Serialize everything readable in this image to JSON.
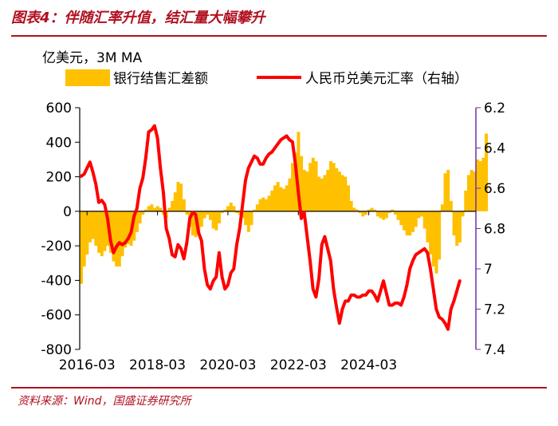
{
  "header": {
    "title": "图表4：伴随汇率升值，结汇量大幅攀升"
  },
  "footer": {
    "source": "资料来源：Wind，国盛证券研究所"
  },
  "colors": {
    "accent": "#b01020",
    "bar": "#ffc000",
    "line": "#ff0000",
    "right_axis": "#7030a0"
  },
  "chart_data": {
    "type": "bar+line",
    "unit_label": "亿美元，3M MA",
    "x_ticks": [
      "2016-03",
      "2018-03",
      "2020-03",
      "2022-03",
      "2024-03"
    ],
    "left_axis": {
      "ylim": [
        -800,
        600
      ],
      "ticks": [
        "600",
        "400",
        "200",
        "0",
        "-200",
        "-400",
        "-600",
        "-800"
      ]
    },
    "right_axis": {
      "ylim": [
        6.2,
        7.4
      ],
      "inverted": true,
      "ticks": [
        "6.2",
        "6.4",
        "6.6",
        "6.8",
        "7",
        "7.2",
        "7.4"
      ]
    },
    "legend": [
      {
        "name": "银行结售汇差额",
        "kind": "bar"
      },
      {
        "name": "人民币兑美元汇率（右轴）",
        "kind": "line"
      }
    ],
    "series": [
      {
        "name": "银行结售汇差额",
        "kind": "bar",
        "axis": "left",
        "start": "2016-01",
        "values": [
          -420,
          -320,
          -250,
          -180,
          -160,
          -200,
          -240,
          -260,
          -230,
          -200,
          -240,
          -290,
          -320,
          -320,
          -260,
          -210,
          -190,
          -200,
          -170,
          -120,
          -70,
          -20,
          10,
          30,
          40,
          20,
          30,
          20,
          -20,
          -40,
          20,
          60,
          110,
          170,
          160,
          70,
          -20,
          -90,
          -140,
          -150,
          -130,
          -90,
          -40,
          -20,
          -50,
          -100,
          -110,
          -70,
          -10,
          10,
          30,
          50,
          30,
          -10,
          -20,
          -40,
          -80,
          -120,
          -80,
          10,
          40,
          70,
          80,
          70,
          90,
          120,
          150,
          170,
          140,
          130,
          150,
          190,
          280,
          340,
          460,
          320,
          240,
          230,
          280,
          310,
          290,
          200,
          190,
          210,
          240,
          290,
          280,
          250,
          230,
          210,
          200,
          150,
          60,
          20,
          10,
          -10,
          -30,
          -20,
          10,
          20,
          10,
          -30,
          -40,
          -50,
          -40,
          -10,
          10,
          -20,
          -50,
          -80,
          -110,
          -140,
          -140,
          -120,
          -90,
          -40,
          -30,
          -100,
          -180,
          -250,
          -320,
          -360,
          -280,
          40,
          220,
          240,
          60,
          -140,
          -200,
          -180,
          -30,
          120,
          210,
          240,
          230,
          300,
          290,
          310,
          450
        ]
      },
      {
        "name": "人民币兑美元汇率（右轴）",
        "kind": "line",
        "axis": "right",
        "start": "2016-01",
        "values": [
          6.54,
          6.53,
          6.5,
          6.47,
          6.52,
          6.58,
          6.67,
          6.66,
          6.68,
          6.75,
          6.86,
          6.92,
          6.89,
          6.87,
          6.88,
          6.87,
          6.85,
          6.82,
          6.74,
          6.7,
          6.6,
          6.55,
          6.45,
          6.32,
          6.31,
          6.29,
          6.35,
          6.5,
          6.62,
          6.8,
          6.85,
          6.93,
          6.94,
          6.88,
          6.9,
          6.95,
          6.87,
          6.75,
          6.72,
          6.73,
          6.82,
          6.86,
          7.0,
          7.08,
          7.1,
          7.06,
          7.04,
          6.92,
          7.04,
          7.1,
          7.08,
          7.02,
          7.0,
          6.88,
          6.8,
          6.68,
          6.56,
          6.5,
          6.47,
          6.44,
          6.45,
          6.48,
          6.48,
          6.45,
          6.43,
          6.42,
          6.4,
          6.38,
          6.36,
          6.35,
          6.34,
          6.36,
          6.37,
          6.48,
          6.62,
          6.75,
          6.72,
          6.84,
          6.96,
          7.1,
          7.14,
          7.05,
          6.88,
          6.84,
          6.9,
          6.96,
          7.1,
          7.19,
          7.27,
          7.2,
          7.16,
          7.16,
          7.13,
          7.13,
          7.14,
          7.14,
          7.13,
          7.13,
          7.11,
          7.11,
          7.13,
          7.16,
          7.11,
          7.06,
          7.12,
          7.18,
          7.18,
          7.17,
          7.17,
          7.18,
          7.14,
          7.08,
          7.0,
          6.96,
          6.93,
          6.92,
          6.91,
          6.9,
          6.92,
          7.0,
          7.1,
          7.2,
          7.24,
          7.25,
          7.27,
          7.3,
          7.2,
          7.16,
          7.11,
          7.06
        ]
      }
    ]
  }
}
